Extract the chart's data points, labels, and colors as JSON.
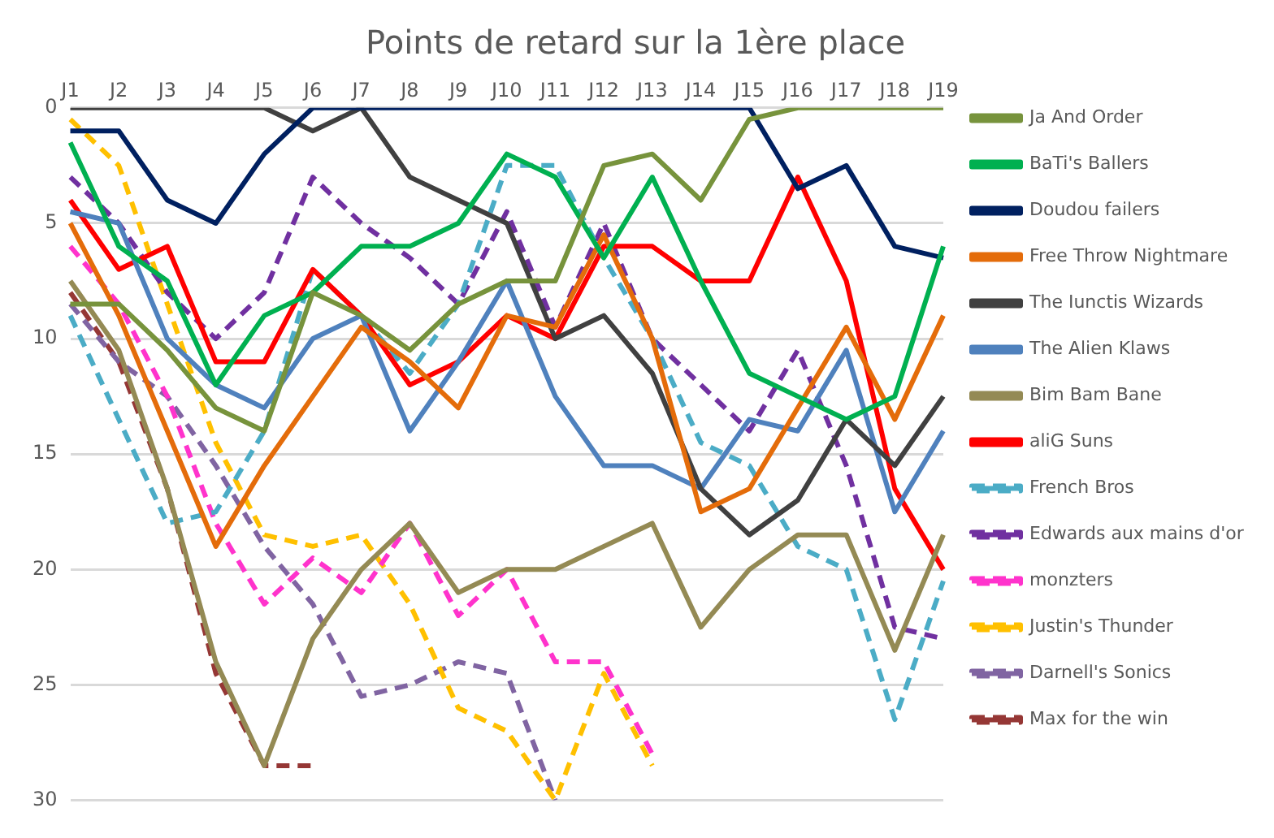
{
  "chart_data": {
    "type": "line",
    "title": "Points de retard sur la 1ère place",
    "categories": [
      "J1",
      "J2",
      "J3",
      "J4",
      "J5",
      "J6",
      "J7",
      "J8",
      "J9",
      "J10",
      "J11",
      "J12",
      "J13",
      "J14",
      "J15",
      "J16",
      "J17",
      "J18",
      "J19"
    ],
    "ylim": [
      30,
      0
    ],
    "yticks": [
      0,
      5,
      10,
      15,
      20,
      25,
      30
    ],
    "grid": "y",
    "legend": "right",
    "marker": "none",
    "series": [
      {
        "name": "Ja And Order",
        "color": "#77933c",
        "line_style": "solid",
        "values": [
          8.5,
          8.5,
          10.5,
          13,
          14,
          8,
          9,
          10.5,
          8.5,
          7.5,
          7.5,
          2.5,
          2,
          4,
          0.5,
          0,
          0,
          0,
          0
        ]
      },
      {
        "name": "BaTi's Ballers",
        "color": "#00b050",
        "line_style": "solid",
        "values": [
          1.5,
          6,
          7.5,
          12,
          9,
          8,
          6,
          6,
          5,
          2,
          3,
          6.5,
          3,
          7.5,
          11.5,
          12.5,
          13.5,
          12.5,
          6
        ]
      },
      {
        "name": "Doudou failers",
        "color": "#002060",
        "line_style": "solid",
        "values": [
          1,
          1,
          4,
          5,
          2,
          0,
          0,
          0,
          0,
          0,
          0,
          0,
          0,
          0,
          0,
          3.5,
          2.5,
          6,
          6.5
        ]
      },
      {
        "name": "Free Throw Nightmare",
        "color": "#e46c0a",
        "line_style": "solid",
        "values": [
          5,
          9,
          14,
          19,
          15.5,
          12.5,
          9.5,
          11,
          13,
          9,
          9.5,
          5.5,
          10,
          17.5,
          16.5,
          13,
          9.5,
          13.5,
          9
        ]
      },
      {
        "name": "The Iunctis Wizards",
        "color": "#404040",
        "line_style": "solid",
        "values": [
          0,
          0,
          0,
          0,
          0,
          1,
          0,
          3,
          4,
          5,
          10,
          9,
          11.5,
          16.5,
          18.5,
          17,
          13.5,
          15.5,
          12.5
        ]
      },
      {
        "name": "The Alien Klaws",
        "color": "#4f81bd",
        "line_style": "solid",
        "values": [
          4.5,
          5,
          10,
          12,
          13,
          10,
          9,
          14,
          11,
          7.5,
          12.5,
          15.5,
          15.5,
          16.5,
          13.5,
          14,
          10.5,
          17.5,
          14
        ]
      },
      {
        "name": "Bim Bam Bane",
        "color": "#948a54",
        "line_style": "solid",
        "values": [
          7.5,
          10.5,
          16.5,
          24,
          28.5,
          23,
          20,
          18,
          21,
          20,
          20,
          19,
          18,
          22.5,
          20,
          18.5,
          18.5,
          23.5,
          18.5
        ]
      },
      {
        "name": "aliG Suns",
        "color": "#ff0000",
        "line_style": "solid",
        "values": [
          4,
          7,
          6,
          11,
          11,
          7,
          9,
          12,
          11,
          9,
          10,
          6,
          6,
          7.5,
          7.5,
          3,
          7.5,
          16.5,
          20
        ]
      },
      {
        "name": "French Bros",
        "color": "#4bacc6",
        "line_style": "dashed",
        "values": [
          9,
          13.5,
          18,
          17.5,
          14,
          7,
          9,
          11.5,
          8.5,
          2.5,
          2.5,
          6.5,
          10,
          14.5,
          15.5,
          19,
          20,
          26.5,
          20.5
        ]
      },
      {
        "name": "Edwards aux mains d'or",
        "color": "#7030a0",
        "line_style": "dashed",
        "values": [
          3,
          5,
          8,
          10,
          8,
          3,
          5,
          6.5,
          8.5,
          4.5,
          9.5,
          5,
          10,
          12,
          14,
          10.5,
          15.5,
          22.5,
          23
        ]
      },
      {
        "name": "monzters",
        "color": "#ff33cc",
        "line_style": "dashed",
        "values": [
          6,
          8.5,
          12.5,
          18,
          21.5,
          19.5,
          21,
          18,
          22,
          20,
          24,
          24,
          28,
          null,
          null,
          null,
          null,
          null,
          null
        ]
      },
      {
        "name": "Justin's Thunder",
        "color": "#ffc000",
        "line_style": "dashed",
        "values": [
          0.5,
          2.5,
          8.5,
          14.5,
          18.5,
          19,
          18.5,
          21.5,
          26,
          27,
          30,
          24.5,
          28.5,
          null,
          null,
          null,
          null,
          null,
          null
        ]
      },
      {
        "name": "Darnell's Sonics",
        "color": "#8064a2",
        "line_style": "dashed",
        "values": [
          8.5,
          11,
          12.5,
          15.5,
          19,
          21.5,
          25.5,
          25,
          24,
          24.5,
          30,
          null,
          null,
          null,
          null,
          null,
          null,
          null,
          null
        ]
      },
      {
        "name": "Max for the win",
        "color": "#953735",
        "line_style": "dashed",
        "values": [
          8,
          11,
          16.5,
          24.5,
          28.5,
          28.5,
          null,
          null,
          null,
          null,
          null,
          null,
          null,
          null,
          null,
          null,
          null,
          null,
          null
        ]
      }
    ]
  }
}
